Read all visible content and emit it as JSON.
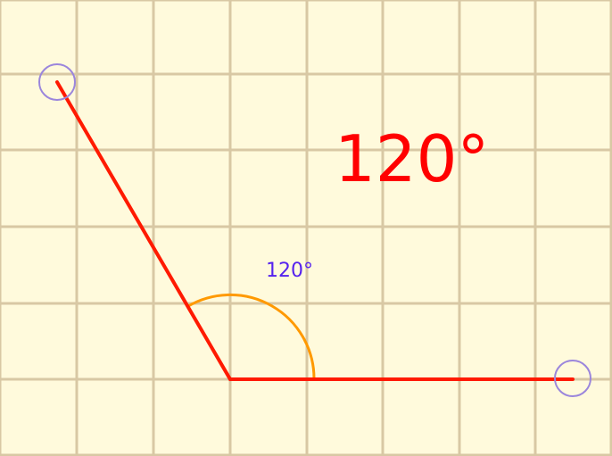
{
  "angle": {
    "big_label": "120°",
    "arc_label": "120°",
    "degrees": 120
  },
  "colors": {
    "background": "#fffadc",
    "grid": "#d8c8a4",
    "rays": "#ff1a00",
    "arc": "#ff9900",
    "arc_label": "#5522ee",
    "big_label": "#ff0000",
    "handle": "#9b86dc"
  }
}
